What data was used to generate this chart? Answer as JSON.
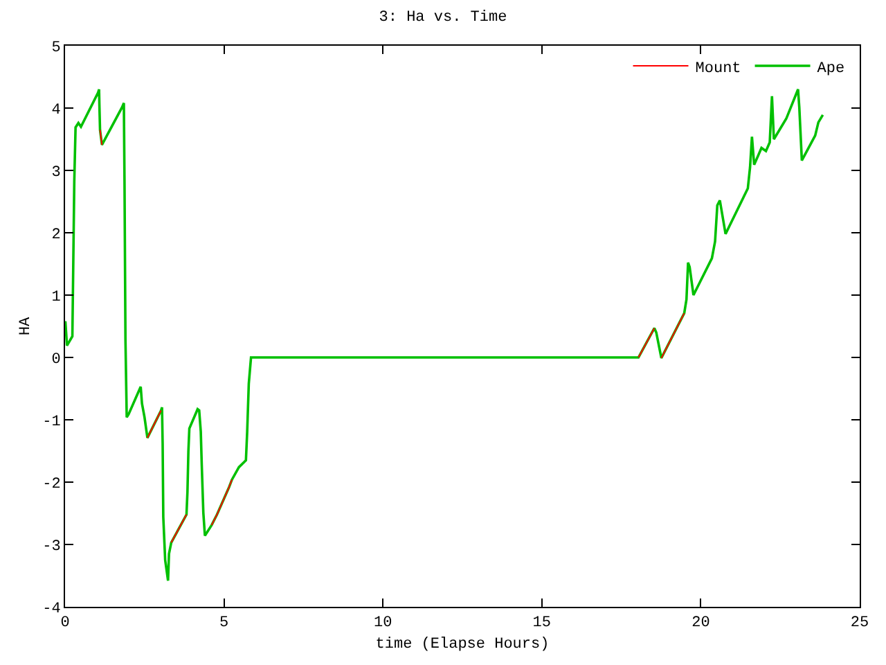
{
  "chart_data": {
    "type": "line",
    "title": "3: Ha vs. Time",
    "xlabel": "time (Elapse Hours)",
    "ylabel": "HA",
    "x": [
      0,
      0.01,
      0.06,
      0.23,
      0.25,
      0.29,
      0.33,
      0.42,
      0.5,
      1.04,
      1.07,
      1.08,
      1.1,
      1.16,
      1.79,
      1.85,
      1.87,
      1.9,
      1.94,
      2.0,
      2.38,
      2.42,
      2.5,
      2.59,
      3.02,
      3.05,
      3.07,
      3.09,
      3.15,
      3.24,
      3.27,
      3.34,
      3.82,
      3.85,
      3.88,
      3.91,
      4.17,
      4.22,
      4.27,
      4.3,
      4.35,
      4.4,
      4.61,
      4.78,
      5.16,
      5.25,
      5.47,
      5.69,
      5.73,
      5.78,
      5.85,
      18.04,
      18.54,
      18.6,
      18.76,
      19.48,
      19.55,
      19.6,
      19.65,
      19.77,
      20.35,
      20.45,
      20.52,
      20.6,
      20.78,
      21.48,
      21.55,
      21.61,
      21.68,
      21.91,
      22.05,
      22.17,
      22.24,
      22.3,
      22.69,
      23.06,
      23.1,
      23.18,
      23.6,
      23.7,
      23.84
    ],
    "series": [
      {
        "name": "Mount",
        "color": "#ff0000",
        "values": [
          null,
          null,
          null,
          null,
          null,
          null,
          null,
          null,
          null,
          null,
          null,
          null,
          3.65,
          3.41,
          null,
          null,
          null,
          null,
          null,
          null,
          null,
          null,
          null,
          -1.29,
          -0.85,
          null,
          null,
          null,
          null,
          null,
          null,
          -2.97,
          -2.52,
          null,
          null,
          null,
          null,
          null,
          null,
          null,
          null,
          null,
          -2.69,
          -2.52,
          -2.08,
          -1.96,
          null,
          null,
          null,
          null,
          null,
          0,
          0.47,
          null,
          -0.01,
          0.71,
          null,
          null,
          null,
          null,
          null,
          null,
          null,
          null,
          null,
          null,
          null,
          null,
          null,
          null,
          null,
          null,
          null,
          null,
          null,
          null,
          null,
          null,
          null,
          null,
          null
        ]
      },
      {
        "name": "Ape",
        "color": "#00c000",
        "values": [
          0.55,
          0.58,
          0.19,
          0.34,
          1.16,
          2.82,
          3.69,
          3.76,
          3.7,
          4.25,
          4.3,
          4.05,
          3.65,
          3.41,
          4.01,
          4.08,
          2.82,
          0.29,
          -0.96,
          -0.91,
          -0.47,
          -0.74,
          -0.96,
          -1.29,
          -0.85,
          -0.8,
          -1.38,
          -2.56,
          -3.25,
          -3.58,
          -3.15,
          -2.97,
          -2.52,
          -2.16,
          -1.51,
          -1.14,
          -0.83,
          -0.85,
          -1.19,
          -1.72,
          -2.49,
          -2.86,
          -2.69,
          -2.52,
          -2.08,
          -1.96,
          -1.76,
          -1.65,
          -1.19,
          -0.42,
          0,
          0,
          0.47,
          0.4,
          -0.01,
          0.71,
          0.93,
          1.52,
          1.45,
          1.0,
          1.59,
          1.86,
          2.44,
          2.52,
          1.98,
          2.71,
          3.05,
          3.54,
          3.09,
          3.36,
          3.31,
          3.45,
          4.19,
          3.5,
          3.83,
          4.3,
          4.01,
          3.16,
          3.56,
          3.77,
          3.89
        ]
      }
    ],
    "xlim": [
      0,
      25
    ],
    "xticks": [
      0,
      5,
      10,
      15,
      20,
      25
    ],
    "ylim": [
      -4,
      5
    ],
    "yticks": [
      -4,
      -3,
      -2,
      -1,
      0,
      1,
      2,
      3,
      4,
      5
    ],
    "legend": "top right",
    "marker": "none",
    "line_style": "solid"
  }
}
